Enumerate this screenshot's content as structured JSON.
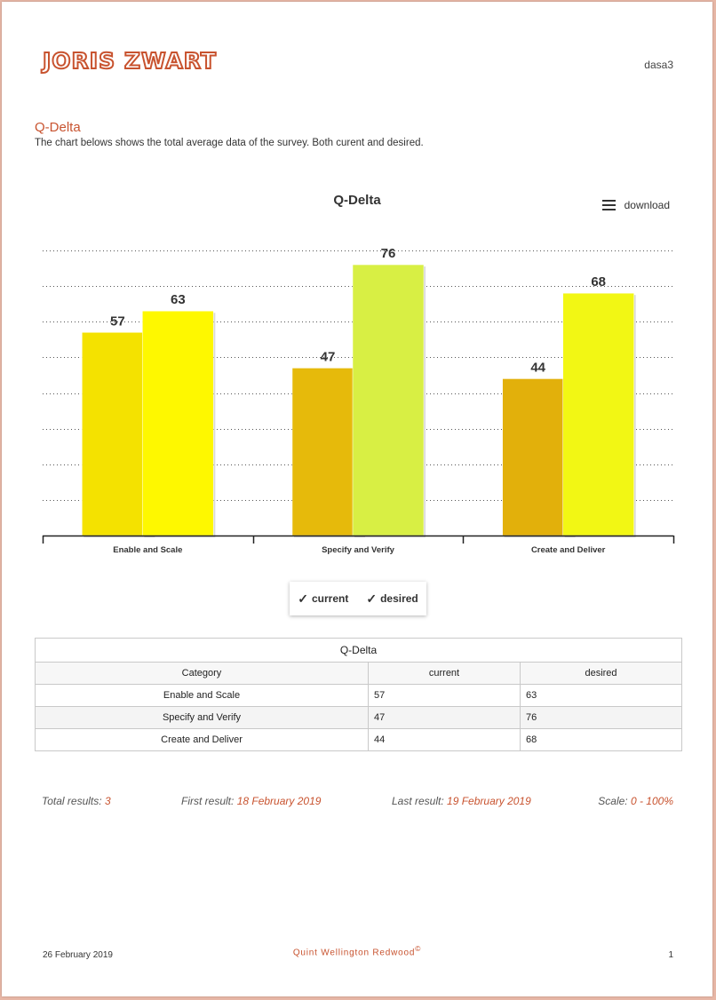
{
  "header": {
    "logo_text": "JORIS ZWART",
    "user": "dasa3"
  },
  "section": {
    "title": "Q-Delta",
    "description": "The chart belows shows the total average data of the survey. Both curent and desired."
  },
  "toolbar": {
    "download_label": "download",
    "menu_icon": "hamburger-menu-icon"
  },
  "chart_data": {
    "type": "bar",
    "title": "Q-Delta",
    "categories": [
      "Enable and Scale",
      "Specify and Verify",
      "Create and Deliver"
    ],
    "series": [
      {
        "name": "current",
        "values": [
          57,
          47,
          44
        ],
        "colors": [
          "#f4e200",
          "#e6ba0b",
          "#e2b00b"
        ]
      },
      {
        "name": "desired",
        "values": [
          63,
          76,
          68
        ],
        "colors": [
          "#fef800",
          "#d8ef44",
          "#f2f714"
        ]
      }
    ],
    "ylim": [
      0,
      80
    ],
    "grid": true,
    "legend_position": "bottom-center"
  },
  "legend": {
    "items": [
      {
        "check": "✓",
        "label": "current"
      },
      {
        "check": "✓",
        "label": "desired"
      }
    ]
  },
  "table": {
    "caption": "Q-Delta",
    "headers": [
      "Category",
      "current",
      "desired"
    ],
    "rows": [
      [
        "Enable and Scale",
        "57",
        "63"
      ],
      [
        "Specify and Verify",
        "47",
        "76"
      ],
      [
        "Create and Deliver",
        "44",
        "68"
      ]
    ]
  },
  "stats": {
    "total_label": "Total results:",
    "total_value": "3",
    "first_label": "First result:",
    "first_value": "18 February 2019",
    "last_label": "Last result:",
    "last_value": "19 February 2019",
    "scale_label": "Scale:",
    "scale_value": "0 - 100%"
  },
  "footer": {
    "date": "26 February 2019",
    "brand": "Quint Wellington Redwood",
    "brand_mark": "©",
    "page": "1"
  }
}
